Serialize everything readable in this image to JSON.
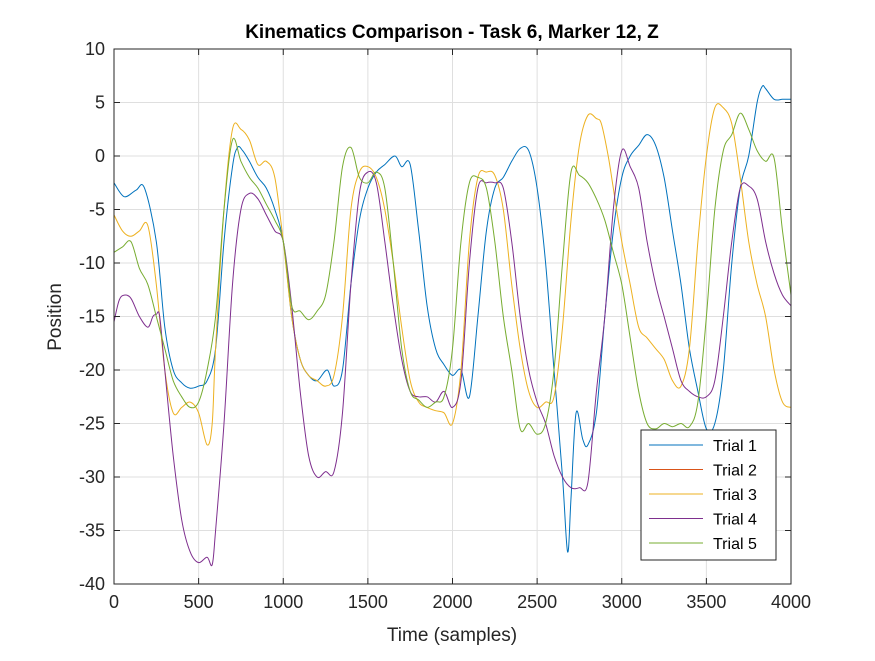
{
  "chart_data": {
    "type": "line",
    "title": "Kinematics Comparison - Task 6, Marker 12, Z",
    "xlabel": "Time (samples)",
    "ylabel": "Position",
    "xlim": [
      0,
      4000
    ],
    "ylim": [
      -40,
      10
    ],
    "xticks": [
      0,
      500,
      1000,
      1500,
      2000,
      2500,
      3000,
      3500,
      4000
    ],
    "yticks": [
      -40,
      -35,
      -30,
      -25,
      -20,
      -15,
      -10,
      -5,
      0,
      5,
      10
    ],
    "grid": true,
    "legend_position": "bottom-right",
    "series": [
      {
        "name": "Trial 1",
        "color": "#0072BD",
        "x": [
          0,
          60,
          130,
          180,
          250,
          300,
          350,
          400,
          450,
          500,
          550,
          600,
          650,
          700,
          730,
          760,
          800,
          850,
          900,
          950,
          1000,
          1050,
          1100,
          1150,
          1200,
          1260,
          1300,
          1350,
          1400,
          1450,
          1500,
          1550,
          1600,
          1660,
          1700,
          1750,
          1800,
          1850,
          1900,
          1950,
          2000,
          2050,
          2100,
          2150,
          2200,
          2250,
          2300,
          2350,
          2400,
          2450,
          2500,
          2550,
          2600,
          2650,
          2680,
          2700,
          2730,
          2770,
          2800,
          2850,
          2900,
          2950,
          3000,
          3050,
          3100,
          3150,
          3200,
          3250,
          3300,
          3350,
          3400,
          3450,
          3500,
          3550,
          3600,
          3650,
          3700,
          3750,
          3800,
          3830,
          3850,
          3900,
          3950,
          4000
        ],
        "y": [
          -2.5,
          -3.8,
          -3.2,
          -3.0,
          -8.0,
          -16.0,
          -20.0,
          -21.2,
          -21.7,
          -21.5,
          -21.0,
          -18.0,
          -8.0,
          -1.0,
          0.8,
          0.5,
          -0.5,
          -2.0,
          -3.0,
          -5.0,
          -8.0,
          -15.0,
          -19.0,
          -20.5,
          -21.0,
          -20.0,
          -21.5,
          -20.0,
          -12.0,
          -6.0,
          -3.0,
          -1.5,
          -0.8,
          0.0,
          -1.0,
          -0.8,
          -7.0,
          -14.0,
          -18.0,
          -19.5,
          -20.5,
          -20.0,
          -22.5,
          -15.0,
          -7.0,
          -3.0,
          -2.0,
          -0.5,
          0.7,
          0.5,
          -3.0,
          -10.0,
          -20.0,
          -30.0,
          -37.0,
          -32.0,
          -24.0,
          -26.5,
          -27.0,
          -24.0,
          -15.0,
          -7.0,
          -2.0,
          0.0,
          1.0,
          2.0,
          1.0,
          -2.0,
          -7.0,
          -12.0,
          -18.0,
          -22.0,
          -25.5,
          -25.0,
          -20.0,
          -10.0,
          -3.0,
          0.0,
          5.0,
          6.5,
          6.3,
          5.3,
          5.3,
          5.3
        ]
      },
      {
        "name": "Trial 2",
        "color": "#D95319",
        "x": [],
        "y": []
      },
      {
        "name": "Trial 3",
        "color": "#EDB120",
        "x": [
          0,
          50,
          100,
          150,
          200,
          250,
          300,
          350,
          400,
          450,
          500,
          550,
          580,
          600,
          650,
          700,
          750,
          800,
          850,
          900,
          950,
          1000,
          1050,
          1100,
          1150,
          1200,
          1250,
          1300,
          1350,
          1400,
          1450,
          1500,
          1550,
          1600,
          1650,
          1700,
          1750,
          1800,
          1850,
          1900,
          1950,
          2000,
          2050,
          2100,
          2150,
          2200,
          2250,
          2300,
          2350,
          2400,
          2450,
          2500,
          2550,
          2600,
          2650,
          2700,
          2750,
          2800,
          2850,
          2880,
          2920,
          2950,
          3000,
          3050,
          3100,
          3150,
          3200,
          3250,
          3300,
          3350,
          3400,
          3450,
          3500,
          3550,
          3600,
          3650,
          3700,
          3750,
          3800,
          3850,
          3900,
          3950,
          4000
        ],
        "y": [
          -5.5,
          -7.0,
          -7.5,
          -7.0,
          -6.5,
          -12.0,
          -20.0,
          -24.0,
          -23.5,
          -23.0,
          -24.0,
          -27.0,
          -25.0,
          -18.0,
          -5.0,
          2.5,
          2.5,
          1.5,
          -0.8,
          -0.5,
          -2.0,
          -8.0,
          -15.0,
          -19.0,
          -20.5,
          -21.0,
          -21.5,
          -20.5,
          -15.0,
          -5.0,
          -1.5,
          -1.0,
          -2.0,
          -5.0,
          -10.0,
          -16.0,
          -21.0,
          -23.0,
          -23.5,
          -23.8,
          -24.0,
          -25.0,
          -20.0,
          -8.0,
          -2.0,
          -1.5,
          -1.8,
          -5.0,
          -12.0,
          -18.0,
          -22.0,
          -23.5,
          -23.0,
          -22.5,
          -16.0,
          -6.0,
          1.0,
          3.8,
          3.5,
          3.0,
          0.0,
          -3.0,
          -8.0,
          -12.0,
          -16.0,
          -17.0,
          -18.0,
          -19.0,
          -21.0,
          -21.5,
          -18.0,
          -8.0,
          0.0,
          4.5,
          4.5,
          3.0,
          -2.0,
          -8.0,
          -12.0,
          -15.0,
          -20.0,
          -23.0,
          -23.5
        ]
      },
      {
        "name": "Trial 4",
        "color": "#7E2F8E",
        "x": [
          0,
          30,
          60,
          100,
          150,
          200,
          230,
          250,
          270,
          300,
          350,
          400,
          450,
          500,
          550,
          580,
          600,
          650,
          700,
          750,
          800,
          850,
          900,
          950,
          1000,
          1050,
          1100,
          1150,
          1200,
          1250,
          1300,
          1350,
          1400,
          1450,
          1500,
          1550,
          1600,
          1650,
          1700,
          1750,
          1800,
          1850,
          1900,
          1950,
          2000,
          2050,
          2100,
          2150,
          2200,
          2250,
          2300,
          2350,
          2400,
          2450,
          2500,
          2550,
          2600,
          2650,
          2700,
          2750,
          2800,
          2850,
          2900,
          2950,
          3000,
          3050,
          3100,
          3150,
          3200,
          3250,
          3300,
          3350,
          3400,
          3450,
          3500,
          3550,
          3600,
          3650,
          3700,
          3750,
          3800,
          3850,
          3900,
          3950,
          4000
        ],
        "y": [
          -15.5,
          -13.5,
          -13.0,
          -13.3,
          -15.0,
          -16.0,
          -15.0,
          -14.8,
          -15.0,
          -20.0,
          -28.0,
          -34.0,
          -37.0,
          -38.0,
          -37.5,
          -38.2,
          -35.0,
          -25.0,
          -12.0,
          -5.0,
          -3.5,
          -4.0,
          -5.5,
          -7.0,
          -8.0,
          -14.0,
          -22.0,
          -28.0,
          -30.0,
          -29.5,
          -29.5,
          -24.0,
          -12.0,
          -3.5,
          -1.5,
          -2.5,
          -8.0,
          -14.0,
          -19.0,
          -22.0,
          -22.5,
          -22.5,
          -23.0,
          -22.0,
          -23.5,
          -21.0,
          -10.0,
          -3.0,
          -2.5,
          -2.5,
          -3.0,
          -8.0,
          -15.0,
          -20.0,
          -23.0,
          -25.0,
          -28.0,
          -30.0,
          -31.0,
          -31.0,
          -30.5,
          -22.0,
          -15.0,
          -5.0,
          0.5,
          -1.0,
          -3.0,
          -8.0,
          -12.0,
          -15.0,
          -18.0,
          -21.0,
          -22.0,
          -22.5,
          -22.5,
          -21.0,
          -15.0,
          -8.0,
          -3.0,
          -2.8,
          -4.0,
          -8.0,
          -11.0,
          -13.0,
          -14.0
        ]
      },
      {
        "name": "Trial 5",
        "color": "#77AC30",
        "x": [
          0,
          50,
          100,
          150,
          200,
          250,
          300,
          350,
          400,
          450,
          500,
          550,
          600,
          650,
          700,
          750,
          800,
          850,
          900,
          950,
          1000,
          1050,
          1100,
          1150,
          1200,
          1250,
          1300,
          1350,
          1400,
          1450,
          1500,
          1550,
          1600,
          1650,
          1700,
          1750,
          1800,
          1850,
          1900,
          1950,
          2000,
          2050,
          2100,
          2150,
          2200,
          2250,
          2300,
          2350,
          2400,
          2450,
          2500,
          2550,
          2600,
          2650,
          2700,
          2750,
          2800,
          2850,
          2900,
          2950,
          3000,
          3050,
          3100,
          3150,
          3200,
          3250,
          3300,
          3350,
          3400,
          3450,
          3500,
          3550,
          3600,
          3650,
          3700,
          3750,
          3800,
          3850,
          3900,
          3950,
          4000
        ],
        "y": [
          -9.0,
          -8.5,
          -8.0,
          -10.5,
          -12.0,
          -15.0,
          -18.0,
          -21.0,
          -22.5,
          -23.5,
          -23.0,
          -20.0,
          -15.0,
          -5.0,
          1.5,
          -0.5,
          -2.0,
          -3.0,
          -4.5,
          -6.0,
          -8.0,
          -14.0,
          -14.5,
          -15.3,
          -14.5,
          -13.0,
          -8.0,
          -1.0,
          0.8,
          -2.0,
          -2.5,
          -1.5,
          -3.0,
          -10.0,
          -18.0,
          -22.0,
          -22.8,
          -23.5,
          -23.0,
          -22.5,
          -18.0,
          -8.0,
          -2.5,
          -2.0,
          -3.0,
          -8.0,
          -15.0,
          -20.0,
          -25.5,
          -25.0,
          -26.0,
          -25.0,
          -20.0,
          -10.0,
          -1.5,
          -1.8,
          -2.5,
          -4.0,
          -6.0,
          -9.0,
          -12.0,
          -17.0,
          -22.0,
          -25.0,
          -25.5,
          -25.0,
          -25.3,
          -25.0,
          -25.3,
          -23.0,
          -15.0,
          -5.0,
          0.5,
          2.0,
          4.0,
          2.5,
          0.5,
          -0.5,
          -0.2,
          -7.0,
          -13.0
        ]
      }
    ]
  }
}
